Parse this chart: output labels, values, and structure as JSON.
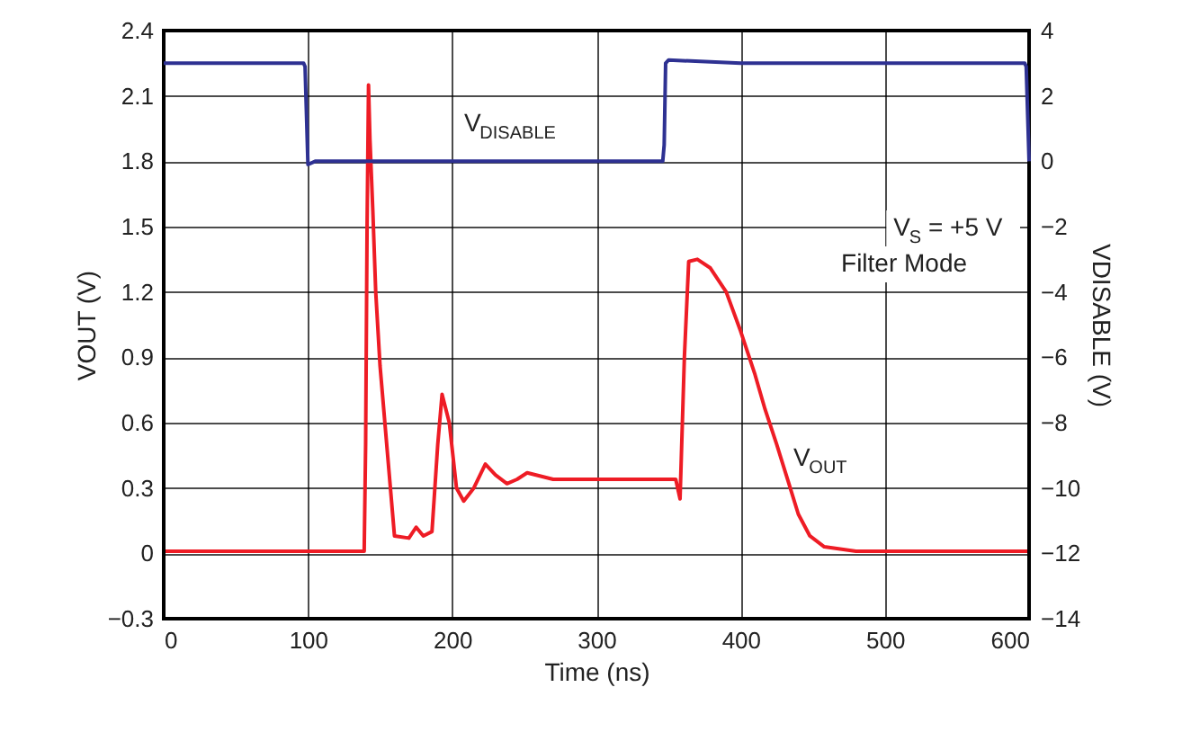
{
  "chart_data": {
    "type": "line",
    "xlabel": "Time (ns)",
    "ylabel": "VOUT (V)",
    "y2label": "VDISABLE (V)",
    "xlim": [
      0,
      600
    ],
    "xticks": [
      0,
      100,
      200,
      300,
      400,
      500,
      600
    ],
    "ylim": [
      -0.3,
      2.4
    ],
    "yticks": [
      {
        "value": -0.3,
        "label": "−0.3"
      },
      0,
      0.3,
      0.6,
      0.9,
      1.2,
      1.5,
      1.8,
      2.1,
      2.4
    ],
    "y2lim": [
      -14,
      4
    ],
    "y2ticks": [
      {
        "value": -14,
        "label": "−14"
      },
      {
        "value": -12,
        "label": "−12"
      },
      {
        "value": -10,
        "label": "−10"
      },
      {
        "value": -8,
        "label": "−8"
      },
      {
        "value": -6,
        "label": "−6"
      },
      {
        "value": -4,
        "label": "−4"
      },
      {
        "value": -2,
        "label": "−2"
      },
      0,
      2,
      4
    ],
    "grid": true,
    "line_style": "solid",
    "marker": "none",
    "series": [
      {
        "color": "#ee1c25",
        "x": [
          0,
          50,
          100,
          139,
          140,
          141,
          142,
          143,
          145,
          147,
          150,
          160,
          170,
          175,
          180,
          186,
          190,
          193,
          198,
          203,
          208,
          215,
          223,
          230,
          238,
          245,
          252,
          270,
          300,
          330,
          355,
          358,
          361,
          364,
          370,
          379,
          390,
          400,
          410,
          417,
          425,
          433,
          440,
          448,
          458,
          480,
          520,
          560,
          600
        ],
        "values": [
          0.01,
          0.01,
          0.01,
          0.01,
          0.5,
          1.5,
          2.15,
          1.9,
          1.57,
          1.2,
          0.86,
          0.08,
          0.07,
          0.12,
          0.08,
          0.1,
          0.5,
          0.73,
          0.6,
          0.3,
          0.24,
          0.3,
          0.41,
          0.36,
          0.32,
          0.34,
          0.37,
          0.34,
          0.34,
          0.34,
          0.34,
          0.25,
          0.9,
          1.34,
          1.35,
          1.31,
          1.2,
          1.02,
          0.82,
          0.66,
          0.5,
          0.33,
          0.18,
          0.08,
          0.03,
          0.01,
          0.01,
          0.01,
          0.01
        ]
      },
      {
        "color": "#2e3192",
        "axis": "y2",
        "x": [
          0,
          50,
          97,
          98,
          100,
          105,
          150,
          200,
          300,
          346,
          347,
          348,
          350,
          400,
          450,
          500,
          550,
          597,
          598,
          600
        ],
        "values": [
          3,
          3,
          3,
          2.9,
          -0.1,
          0,
          0,
          0,
          0,
          0,
          0.5,
          3,
          3.1,
          3,
          3,
          3,
          3,
          3,
          2.9,
          0
        ]
      }
    ],
    "annotations": [
      "V$_{DISABLE}$",
      "V$_{OUT}$",
      "V$_{S}$ = +5 V",
      "Filter Mode"
    ]
  }
}
